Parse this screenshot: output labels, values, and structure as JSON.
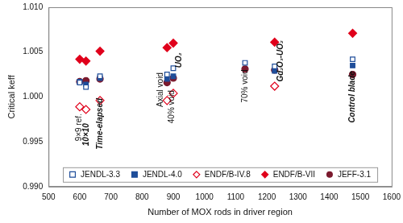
{
  "chart_data": {
    "type": "scatter",
    "x_label": "Number of MOX rods in driver region",
    "y_label": "Critical keff",
    "x": [
      600,
      620,
      665,
      880,
      900,
      1130,
      1225,
      1475
    ],
    "series": [
      {
        "name": "JENDL-3.3",
        "color": "#1f4e9a",
        "marker": "square-open",
        "values": [
          1.0016,
          1.0011,
          1.0023,
          1.0025,
          1.0032,
          1.0038,
          1.0034,
          1.0042
        ]
      },
      {
        "name": "JENDL-4.0",
        "color": "#1f4e9a",
        "marker": "square",
        "values": [
          1.0017,
          1.0014,
          1.0021,
          1.002,
          1.0023,
          null,
          1.0029,
          1.0035
        ]
      },
      {
        "name": "ENDF/B-IV.8",
        "color": "#e0001b",
        "marker": "diamond-open",
        "values": [
          0.9989,
          0.9986,
          0.9996,
          0.9996,
          1.0004,
          null,
          1.0012,
          null
        ]
      },
      {
        "name": "ENDF/B-VII",
        "color": "#e0001b",
        "marker": "diamond",
        "values": [
          1.0042,
          1.004,
          1.0051,
          1.0055,
          1.006,
          null,
          1.0061,
          1.0071
        ]
      },
      {
        "name": "JEFF-3.1",
        "color": "#7b1a2e",
        "marker": "circle",
        "values": [
          1.0017,
          1.0018,
          1.002,
          1.0016,
          1.0021,
          1.0031,
          1.003,
          1.0025
        ]
      }
    ],
    "annotations": [
      {
        "text": "9×9 ref.",
        "x": 597,
        "y": 0.9966
      },
      {
        "text": "10×10",
        "x": 621,
        "y": 0.9958
      },
      {
        "text": "Time-elapsed",
        "x": 666,
        "y": 0.997
      },
      {
        "text": "Axial void",
        "x": 860,
        "y": 1.0008
      },
      {
        "text": "40% void",
        "x": 896,
        "y": 0.9989
      },
      {
        "text": "UO₂",
        "x": 918,
        "y": 1.0041
      },
      {
        "text": "70% void",
        "x": 1130,
        "y": 1.0012
      },
      {
        "text": "Gd₂O₃-UO₂",
        "x": 1245,
        "y": 1.004
      },
      {
        "text": "Control blade",
        "x": 1475,
        "y": 1.0
      }
    ],
    "xlim": [
      500,
      1600
    ],
    "xticks": [
      500,
      600,
      700,
      800,
      900,
      1000,
      1100,
      1200,
      1300,
      1400,
      1500,
      1600
    ],
    "ylim": [
      0.99,
      1.01
    ],
    "yticks": [
      {
        "value": 0.99,
        "label": "0.990"
      },
      {
        "value": 0.995,
        "label": "0.995"
      },
      {
        "value": 1.0,
        "label": "1.000"
      },
      {
        "value": 1.005,
        "label": "1.005"
      },
      {
        "value": 1.01,
        "label": "1.010"
      }
    ],
    "grid": false,
    "legend": "bottom"
  }
}
